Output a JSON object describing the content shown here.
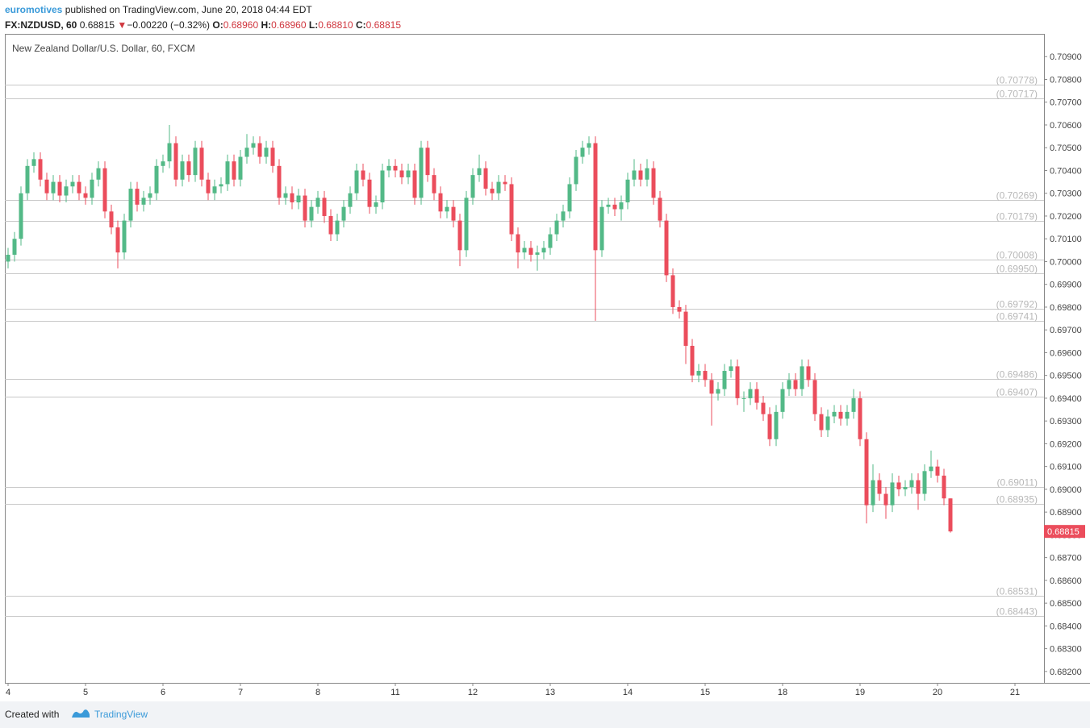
{
  "header": {
    "author": "euromotives",
    "published": "published on TradingView.com, June 20, 2018 04:44 EDT",
    "symbol": "FX:NZDUSD, 60",
    "last": "0.68815",
    "arrow": "▼",
    "change": "−0.00220 (−0.32%)",
    "ohlc": [
      {
        "label": "O:",
        "value": "0.68960"
      },
      {
        "label": "H:",
        "value": "0.68960"
      },
      {
        "label": "L:",
        "value": "0.68810"
      },
      {
        "label": "C:",
        "value": "0.68815"
      }
    ]
  },
  "footer": {
    "created": "Created with",
    "brand": "TradingView"
  },
  "chart_data": {
    "type": "candlestick",
    "title": "New Zealand Dollar/U.S. Dollar, 60, FXCM",
    "up_color": "#53b987",
    "down_color": "#eb4d5c",
    "level_color": "#c8c8c8",
    "last_price": 0.68815,
    "xlim": [
      -0.5,
      160.5
    ],
    "xticks": [
      {
        "value": 0,
        "label": "4"
      },
      {
        "value": 12,
        "label": "5"
      },
      {
        "value": 24,
        "label": "6"
      },
      {
        "value": 36,
        "label": "7"
      },
      {
        "value": 48,
        "label": "8"
      },
      {
        "value": 60,
        "label": "11"
      },
      {
        "value": 72,
        "label": "12"
      },
      {
        "value": 84,
        "label": "13"
      },
      {
        "value": 96,
        "label": "14"
      },
      {
        "value": 108,
        "label": "15"
      },
      {
        "value": 120,
        "label": "18"
      },
      {
        "value": 132,
        "label": "19"
      },
      {
        "value": 144,
        "label": "20"
      },
      {
        "value": 156,
        "label": "21"
      }
    ],
    "ylim": [
      0.6815,
      0.71
    ],
    "yticks": [
      {
        "value": 0.682,
        "label": "0.68200"
      },
      {
        "value": 0.683,
        "label": "0.68300"
      },
      {
        "value": 0.684,
        "label": "0.68400"
      },
      {
        "value": 0.685,
        "label": "0.68500"
      },
      {
        "value": 0.686,
        "label": "0.68600"
      },
      {
        "value": 0.687,
        "label": "0.68700"
      },
      {
        "value": 0.688,
        "label": "0.68800"
      },
      {
        "value": 0.689,
        "label": "0.68900"
      },
      {
        "value": 0.69,
        "label": "0.69000"
      },
      {
        "value": 0.691,
        "label": "0.69100"
      },
      {
        "value": 0.692,
        "label": "0.69200"
      },
      {
        "value": 0.693,
        "label": "0.69300"
      },
      {
        "value": 0.694,
        "label": "0.69400"
      },
      {
        "value": 0.695,
        "label": "0.69500"
      },
      {
        "value": 0.696,
        "label": "0.69600"
      },
      {
        "value": 0.697,
        "label": "0.69700"
      },
      {
        "value": 0.698,
        "label": "0.69800"
      },
      {
        "value": 0.699,
        "label": "0.69900"
      },
      {
        "value": 0.7,
        "label": "0.70000"
      },
      {
        "value": 0.701,
        "label": "0.70100"
      },
      {
        "value": 0.702,
        "label": "0.70200"
      },
      {
        "value": 0.703,
        "label": "0.70300"
      },
      {
        "value": 0.704,
        "label": "0.70400"
      },
      {
        "value": 0.705,
        "label": "0.70500"
      },
      {
        "value": 0.706,
        "label": "0.70600"
      },
      {
        "value": 0.707,
        "label": "0.70700"
      },
      {
        "value": 0.708,
        "label": "0.70800"
      },
      {
        "value": 0.709,
        "label": "0.70900"
      }
    ],
    "levels": [
      {
        "value": 0.70778,
        "label": "(0.70778)"
      },
      {
        "value": 0.70717,
        "label": "(0.70717)"
      },
      {
        "value": 0.70269,
        "label": "(0.70269)"
      },
      {
        "value": 0.70179,
        "label": "(0.70179)"
      },
      {
        "value": 0.70008,
        "label": "(0.70008)"
      },
      {
        "value": 0.6995,
        "label": "(0.69950)"
      },
      {
        "value": 0.69792,
        "label": "(0.69792)"
      },
      {
        "value": 0.69741,
        "label": "(0.69741)"
      },
      {
        "value": 0.69486,
        "label": "(0.69486)"
      },
      {
        "value": 0.69407,
        "label": "(0.69407)"
      },
      {
        "value": 0.69011,
        "label": "(0.69011)"
      },
      {
        "value": 0.68935,
        "label": "(0.68935)"
      },
      {
        "value": 0.68531,
        "label": "(0.68531)"
      },
      {
        "value": 0.68443,
        "label": "(0.68443)"
      }
    ],
    "ohlc": [
      [
        0.7,
        0.7006,
        0.6997,
        0.7003
      ],
      [
        0.7003,
        0.7013,
        0.7,
        0.701
      ],
      [
        0.701,
        0.7033,
        0.7007,
        0.703
      ],
      [
        0.703,
        0.7045,
        0.7027,
        0.7042
      ],
      [
        0.7042,
        0.7048,
        0.7039,
        0.7045
      ],
      [
        0.7045,
        0.7048,
        0.7033,
        0.7036
      ],
      [
        0.7036,
        0.7039,
        0.7027,
        0.703
      ],
      [
        0.703,
        0.7038,
        0.7027,
        0.7035
      ],
      [
        0.7035,
        0.7038,
        0.7026,
        0.7029
      ],
      [
        0.7029,
        0.7036,
        0.7026,
        0.7033
      ],
      [
        0.7033,
        0.7038,
        0.703,
        0.7035
      ],
      [
        0.7035,
        0.7038,
        0.7027,
        0.703
      ],
      [
        0.703,
        0.7033,
        0.7025,
        0.7028
      ],
      [
        0.7028,
        0.7039,
        0.7025,
        0.7036
      ],
      [
        0.7036,
        0.7044,
        0.7033,
        0.7041
      ],
      [
        0.7041,
        0.7044,
        0.7019,
        0.7022
      ],
      [
        0.7022,
        0.7025,
        0.7012,
        0.7015
      ],
      [
        0.7015,
        0.7018,
        0.6997,
        0.7004
      ],
      [
        0.7004,
        0.7021,
        0.7001,
        0.7018
      ],
      [
        0.7018,
        0.7035,
        0.7015,
        0.7032
      ],
      [
        0.7032,
        0.7035,
        0.7022,
        0.7025
      ],
      [
        0.7025,
        0.7031,
        0.7022,
        0.7028
      ],
      [
        0.7028,
        0.7033,
        0.7025,
        0.703
      ],
      [
        0.703,
        0.7045,
        0.7027,
        0.7042
      ],
      [
        0.7042,
        0.7047,
        0.7039,
        0.7044
      ],
      [
        0.7044,
        0.706,
        0.7041,
        0.7052
      ],
      [
        0.7052,
        0.7055,
        0.7033,
        0.7036
      ],
      [
        0.7036,
        0.7047,
        0.7033,
        0.7044
      ],
      [
        0.7044,
        0.7047,
        0.7035,
        0.7038
      ],
      [
        0.7038,
        0.7053,
        0.7035,
        0.705
      ],
      [
        0.705,
        0.7053,
        0.7033,
        0.7036
      ],
      [
        0.7036,
        0.7039,
        0.7027,
        0.703
      ],
      [
        0.703,
        0.7036,
        0.7027,
        0.7033
      ],
      [
        0.7033,
        0.7037,
        0.703,
        0.7034
      ],
      [
        0.7034,
        0.7047,
        0.7031,
        0.7044
      ],
      [
        0.7044,
        0.7047,
        0.7033,
        0.7036
      ],
      [
        0.7036,
        0.7049,
        0.7033,
        0.7046
      ],
      [
        0.7046,
        0.7056,
        0.7043,
        0.705
      ],
      [
        0.705,
        0.7055,
        0.7047,
        0.7052
      ],
      [
        0.7052,
        0.7055,
        0.7043,
        0.7046
      ],
      [
        0.7046,
        0.7053,
        0.7043,
        0.705
      ],
      [
        0.705,
        0.7053,
        0.7039,
        0.7042
      ],
      [
        0.7042,
        0.7045,
        0.7025,
        0.7028
      ],
      [
        0.7028,
        0.7033,
        0.7025,
        0.703
      ],
      [
        0.703,
        0.7033,
        0.7023,
        0.7026
      ],
      [
        0.7026,
        0.7032,
        0.7023,
        0.7029
      ],
      [
        0.7029,
        0.7032,
        0.7015,
        0.7018
      ],
      [
        0.7018,
        0.7027,
        0.7015,
        0.7024
      ],
      [
        0.7024,
        0.7031,
        0.7021,
        0.7028
      ],
      [
        0.7028,
        0.7031,
        0.7017,
        0.702
      ],
      [
        0.702,
        0.7023,
        0.7009,
        0.7012
      ],
      [
        0.7012,
        0.7021,
        0.7009,
        0.7018
      ],
      [
        0.7018,
        0.7027,
        0.7015,
        0.7024
      ],
      [
        0.7024,
        0.7033,
        0.7021,
        0.703
      ],
      [
        0.703,
        0.7043,
        0.7027,
        0.704
      ],
      [
        0.704,
        0.7043,
        0.7033,
        0.7036
      ],
      [
        0.7036,
        0.7039,
        0.7021,
        0.7024
      ],
      [
        0.7024,
        0.7029,
        0.7021,
        0.7026
      ],
      [
        0.7026,
        0.7043,
        0.7023,
        0.704
      ],
      [
        0.704,
        0.7045,
        0.7037,
        0.7042
      ],
      [
        0.7042,
        0.7045,
        0.7037,
        0.704
      ],
      [
        0.704,
        0.7043,
        0.7034,
        0.7037
      ],
      [
        0.7037,
        0.7043,
        0.7034,
        0.704
      ],
      [
        0.704,
        0.7043,
        0.7025,
        0.7028
      ],
      [
        0.7028,
        0.7053,
        0.7025,
        0.705
      ],
      [
        0.705,
        0.7053,
        0.7035,
        0.7038
      ],
      [
        0.7038,
        0.7041,
        0.7027,
        0.703
      ],
      [
        0.703,
        0.7033,
        0.7019,
        0.7022
      ],
      [
        0.7022,
        0.7027,
        0.7019,
        0.7024
      ],
      [
        0.7024,
        0.7027,
        0.7015,
        0.7018
      ],
      [
        0.7018,
        0.7021,
        0.6998,
        0.7005
      ],
      [
        0.7005,
        0.7031,
        0.7002,
        0.7028
      ],
      [
        0.7028,
        0.7041,
        0.7025,
        0.7038
      ],
      [
        0.7038,
        0.7047,
        0.7035,
        0.7041
      ],
      [
        0.7041,
        0.7044,
        0.7029,
        0.7032
      ],
      [
        0.7032,
        0.7035,
        0.7027,
        0.703
      ],
      [
        0.703,
        0.7038,
        0.7027,
        0.7035
      ],
      [
        0.7035,
        0.7038,
        0.7031,
        0.7034
      ],
      [
        0.7034,
        0.7037,
        0.7009,
        0.7012
      ],
      [
        0.7012,
        0.7015,
        0.6997,
        0.7004
      ],
      [
        0.7004,
        0.7009,
        0.7001,
        0.7006
      ],
      [
        0.7006,
        0.7009,
        0.7,
        0.7003
      ],
      [
        0.7003,
        0.7007,
        0.6996,
        0.7004
      ],
      [
        0.7004,
        0.7009,
        0.7001,
        0.7006
      ],
      [
        0.7006,
        0.7015,
        0.7003,
        0.7012
      ],
      [
        0.7012,
        0.7021,
        0.7009,
        0.7018
      ],
      [
        0.7018,
        0.7025,
        0.7015,
        0.7022
      ],
      [
        0.7022,
        0.7037,
        0.7019,
        0.7034
      ],
      [
        0.7034,
        0.7049,
        0.7031,
        0.7046
      ],
      [
        0.7046,
        0.7053,
        0.7043,
        0.705
      ],
      [
        0.705,
        0.7055,
        0.7047,
        0.7052
      ],
      [
        0.7052,
        0.7055,
        0.6974,
        0.7005
      ],
      [
        0.7005,
        0.7027,
        0.7002,
        0.7024
      ],
      [
        0.7024,
        0.7028,
        0.7021,
        0.7025
      ],
      [
        0.7025,
        0.7028,
        0.702,
        0.7023
      ],
      [
        0.7023,
        0.7029,
        0.7018,
        0.7026
      ],
      [
        0.7026,
        0.7039,
        0.7023,
        0.7036
      ],
      [
        0.7036,
        0.7045,
        0.7033,
        0.704
      ],
      [
        0.704,
        0.7043,
        0.7033,
        0.7036
      ],
      [
        0.7036,
        0.7045,
        0.7033,
        0.7041
      ],
      [
        0.7041,
        0.7044,
        0.7025,
        0.7028
      ],
      [
        0.7028,
        0.7031,
        0.7015,
        0.7018
      ],
      [
        0.7018,
        0.7021,
        0.6991,
        0.6994
      ],
      [
        0.6994,
        0.6997,
        0.6977,
        0.698
      ],
      [
        0.698,
        0.6983,
        0.6975,
        0.6978
      ],
      [
        0.6978,
        0.6981,
        0.6955,
        0.6963
      ],
      [
        0.6963,
        0.6966,
        0.6947,
        0.695
      ],
      [
        0.695,
        0.6955,
        0.6947,
        0.6952
      ],
      [
        0.6952,
        0.6955,
        0.6945,
        0.6948
      ],
      [
        0.6948,
        0.6951,
        0.6928,
        0.6942
      ],
      [
        0.6942,
        0.6947,
        0.6939,
        0.6944
      ],
      [
        0.6944,
        0.6955,
        0.6941,
        0.6952
      ],
      [
        0.6952,
        0.6957,
        0.6949,
        0.6954
      ],
      [
        0.6954,
        0.6957,
        0.6937,
        0.694
      ],
      [
        0.694,
        0.6943,
        0.6934,
        0.694
      ],
      [
        0.694,
        0.6947,
        0.6937,
        0.6944
      ],
      [
        0.6944,
        0.6947,
        0.6935,
        0.6938
      ],
      [
        0.6938,
        0.6941,
        0.693,
        0.6933
      ],
      [
        0.6933,
        0.6936,
        0.6919,
        0.6922
      ],
      [
        0.6922,
        0.6937,
        0.6919,
        0.6934
      ],
      [
        0.6934,
        0.6947,
        0.6931,
        0.6944
      ],
      [
        0.6944,
        0.6951,
        0.6941,
        0.6948
      ],
      [
        0.6948,
        0.6951,
        0.6941,
        0.6944
      ],
      [
        0.6944,
        0.6957,
        0.6941,
        0.6954
      ],
      [
        0.6954,
        0.6957,
        0.6945,
        0.6948
      ],
      [
        0.6948,
        0.6951,
        0.693,
        0.6933
      ],
      [
        0.6933,
        0.6936,
        0.6923,
        0.6926
      ],
      [
        0.6926,
        0.6935,
        0.6923,
        0.6932
      ],
      [
        0.6932,
        0.6937,
        0.6929,
        0.6934
      ],
      [
        0.6934,
        0.6937,
        0.6928,
        0.6931
      ],
      [
        0.6931,
        0.6937,
        0.6928,
        0.6934
      ],
      [
        0.6934,
        0.6944,
        0.6931,
        0.694
      ],
      [
        0.694,
        0.6943,
        0.6919,
        0.6922
      ],
      [
        0.6922,
        0.6925,
        0.6885,
        0.6893
      ],
      [
        0.6893,
        0.6911,
        0.689,
        0.6904
      ],
      [
        0.6904,
        0.6907,
        0.6895,
        0.6898
      ],
      [
        0.6898,
        0.6901,
        0.6887,
        0.6893
      ],
      [
        0.6893,
        0.6907,
        0.689,
        0.6903
      ],
      [
        0.6903,
        0.6906,
        0.6897,
        0.69
      ],
      [
        0.69,
        0.6904,
        0.6897,
        0.6901
      ],
      [
        0.6901,
        0.6907,
        0.6898,
        0.6904
      ],
      [
        0.6904,
        0.6907,
        0.6891,
        0.6898
      ],
      [
        0.6898,
        0.6911,
        0.6895,
        0.6908
      ],
      [
        0.6908,
        0.6917,
        0.6905,
        0.691
      ],
      [
        0.691,
        0.6913,
        0.6903,
        0.6906
      ],
      [
        0.6906,
        0.6909,
        0.6893,
        0.6896
      ],
      [
        0.6896,
        0.6896,
        0.6881,
        0.68815
      ]
    ]
  }
}
